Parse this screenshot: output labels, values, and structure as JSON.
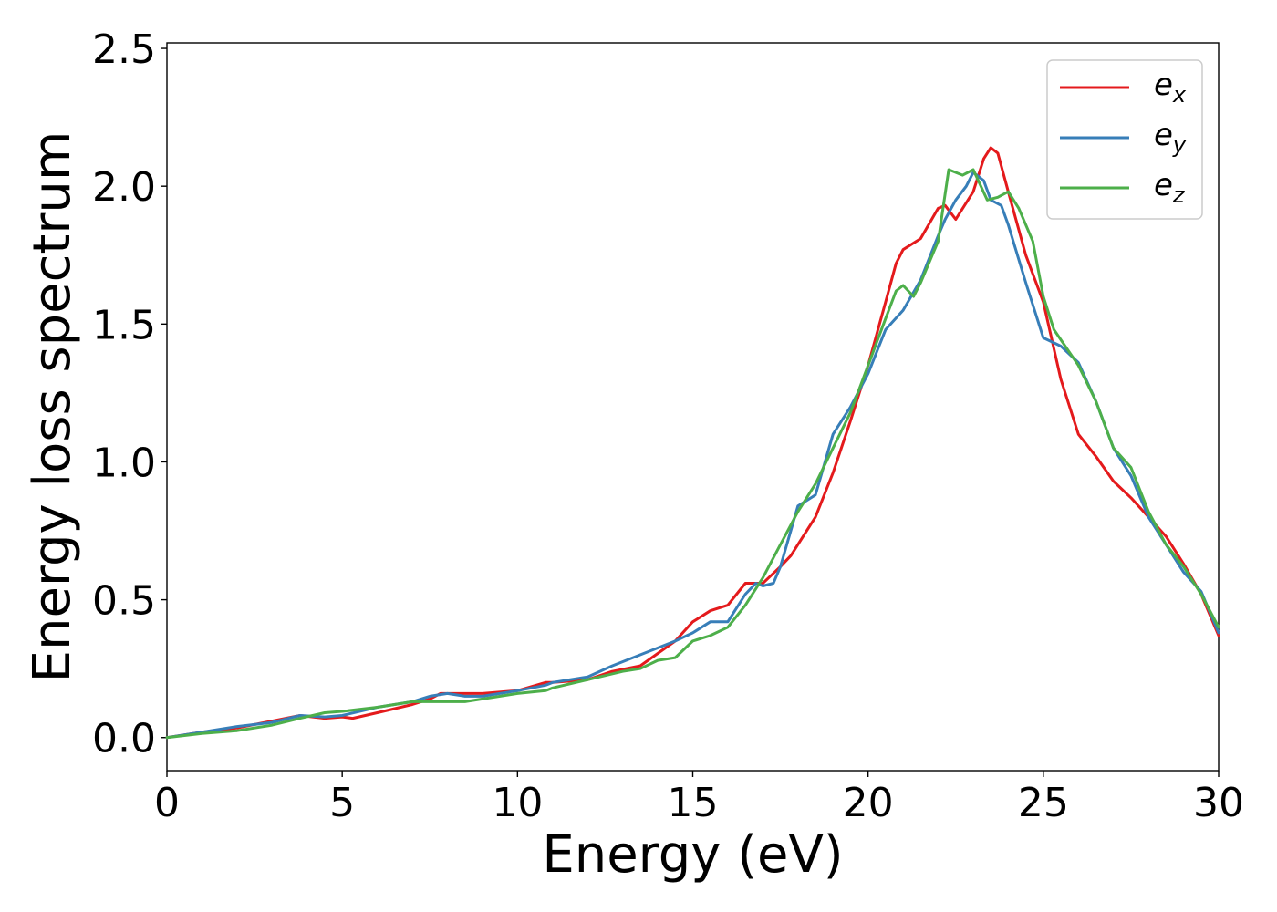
{
  "chart_data": {
    "type": "line",
    "title": "",
    "xlabel": "Energy (eV)",
    "ylabel": "Energy loss spectrum",
    "xlim": [
      0,
      30
    ],
    "ylim": [
      -0.12,
      2.52
    ],
    "xticks": [
      0,
      5,
      10,
      15,
      20,
      25,
      30
    ],
    "xtick_labels": [
      "0",
      "5",
      "10",
      "15",
      "20",
      "25",
      "30"
    ],
    "yticks": [
      0.0,
      0.5,
      1.0,
      1.5,
      2.0,
      2.5
    ],
    "ytick_labels": [
      "0.0",
      "0.5",
      "1.0",
      "1.5",
      "2.0",
      "2.5"
    ],
    "grid": false,
    "legend": "top-right",
    "series": [
      {
        "name": "e_x",
        "label_base": "e",
        "label_sub": "x",
        "color": "#e41a1c",
        "x": [
          0,
          1,
          2,
          3,
          3.8,
          4.5,
          5,
          5.3,
          6,
          7,
          7.5,
          7.8,
          8.5,
          9,
          10,
          10.8,
          11,
          12,
          12.7,
          13.5,
          14.5,
          15,
          15.5,
          16,
          16.5,
          17,
          17.5,
          17.8,
          18,
          18.5,
          19,
          19.5,
          20,
          20.5,
          20.8,
          21,
          21.5,
          22,
          22.2,
          22.5,
          23,
          23.3,
          23.5,
          23.7,
          24,
          24.5,
          25,
          25.5,
          26,
          26.5,
          27,
          27.5,
          28,
          28.5,
          29,
          29.5,
          30
        ],
        "y": [
          0,
          0.02,
          0.035,
          0.06,
          0.08,
          0.07,
          0.075,
          0.07,
          0.09,
          0.12,
          0.14,
          0.16,
          0.16,
          0.16,
          0.17,
          0.2,
          0.2,
          0.21,
          0.24,
          0.26,
          0.35,
          0.42,
          0.46,
          0.48,
          0.56,
          0.56,
          0.62,
          0.66,
          0.7,
          0.8,
          0.96,
          1.15,
          1.35,
          1.58,
          1.72,
          1.77,
          1.81,
          1.92,
          1.93,
          1.88,
          1.98,
          2.1,
          2.14,
          2.12,
          1.98,
          1.75,
          1.58,
          1.3,
          1.1,
          1.02,
          0.93,
          0.87,
          0.8,
          0.73,
          0.63,
          0.52,
          0.37
        ]
      },
      {
        "name": "e_y",
        "label_base": "e",
        "label_sub": "y",
        "color": "#377eb8",
        "x": [
          0,
          1,
          2,
          3,
          3.8,
          4.5,
          5,
          6,
          7,
          7.5,
          8,
          8.5,
          9,
          10,
          10.8,
          11,
          12,
          12.7,
          13.5,
          14.5,
          15,
          15.5,
          16,
          16.5,
          16.8,
          17,
          17.3,
          17.5,
          18,
          18.5,
          19,
          19.5,
          20,
          20.5,
          21,
          21.5,
          22,
          22.2,
          22.5,
          22.8,
          23,
          23.3,
          23.5,
          23.8,
          24,
          24.5,
          25,
          25.5,
          26,
          26.5,
          27,
          27.5,
          28,
          28.5,
          29,
          29.5,
          30
        ],
        "y": [
          0,
          0.02,
          0.04,
          0.055,
          0.08,
          0.075,
          0.08,
          0.11,
          0.13,
          0.15,
          0.16,
          0.15,
          0.15,
          0.17,
          0.19,
          0.2,
          0.22,
          0.26,
          0.3,
          0.35,
          0.38,
          0.42,
          0.42,
          0.52,
          0.56,
          0.55,
          0.56,
          0.62,
          0.84,
          0.88,
          1.1,
          1.2,
          1.32,
          1.48,
          1.55,
          1.66,
          1.82,
          1.88,
          1.95,
          2.0,
          2.05,
          2.02,
          1.95,
          1.93,
          1.86,
          1.65,
          1.45,
          1.42,
          1.36,
          1.22,
          1.05,
          0.95,
          0.8,
          0.7,
          0.6,
          0.53,
          0.38
        ]
      },
      {
        "name": "e_z",
        "label_base": "e",
        "label_sub": "z",
        "color": "#4daf4a",
        "x": [
          0,
          1,
          2,
          3,
          3.8,
          4.5,
          5,
          6,
          7,
          7.5,
          8,
          8.5,
          9,
          10,
          10.8,
          11,
          12,
          13,
          13.5,
          14,
          14.5,
          15,
          15.5,
          16,
          16.5,
          17,
          17.5,
          18,
          18.5,
          19,
          19.5,
          20,
          20.5,
          20.8,
          21,
          21.3,
          21.5,
          22,
          22.3,
          22.7,
          23,
          23.4,
          23.7,
          24,
          24.3,
          24.7,
          25,
          25.3,
          26,
          26.5,
          27,
          27.5,
          28,
          28.5,
          29,
          29.5,
          30
        ],
        "y": [
          0,
          0.015,
          0.025,
          0.045,
          0.07,
          0.09,
          0.095,
          0.11,
          0.13,
          0.13,
          0.13,
          0.13,
          0.14,
          0.16,
          0.17,
          0.18,
          0.21,
          0.24,
          0.25,
          0.28,
          0.29,
          0.35,
          0.37,
          0.4,
          0.48,
          0.58,
          0.7,
          0.82,
          0.92,
          1.05,
          1.18,
          1.35,
          1.52,
          1.62,
          1.64,
          1.6,
          1.65,
          1.8,
          2.06,
          2.04,
          2.06,
          1.95,
          1.96,
          1.98,
          1.92,
          1.8,
          1.6,
          1.48,
          1.35,
          1.22,
          1.05,
          0.98,
          0.82,
          0.7,
          0.62,
          0.52,
          0.4
        ]
      }
    ]
  }
}
